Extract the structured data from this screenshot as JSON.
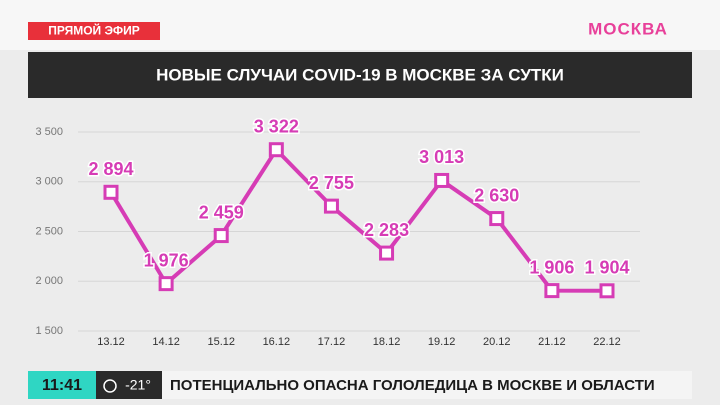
{
  "live_badge": "ПРЯМОЙ ЭФИР",
  "logo": "МОСКВА",
  "chart_data": {
    "type": "line",
    "title": "НОВЫЕ СЛУЧАИ COVID-19 В МОСКВЕ ЗА СУТКИ",
    "categories": [
      "13.12",
      "14.12",
      "15.12",
      "16.12",
      "17.12",
      "18.12",
      "19.12",
      "20.12",
      "21.12",
      "22.12"
    ],
    "values": [
      2894,
      1976,
      2459,
      3322,
      2755,
      2283,
      3013,
      2630,
      1906,
      1904
    ],
    "value_labels": [
      "2 894",
      "1 976",
      "2 459",
      "3 322",
      "2 755",
      "2 283",
      "3 013",
      "2 630",
      "1 906",
      "1 904"
    ],
    "color": "#d63cb5",
    "ylim": [
      1500,
      3500
    ],
    "yticks": [
      {
        "value": 1500,
        "label": "1 500"
      },
      {
        "value": 2000,
        "label": "2 000"
      },
      {
        "value": 2500,
        "label": "2 500"
      },
      {
        "value": 3000,
        "label": "3 000"
      },
      {
        "value": 3500,
        "label": "3 500"
      }
    ],
    "grid": true
  },
  "ticker": {
    "clock": "11:41",
    "temperature": "-21°",
    "text": "ПОТЕНЦИАЛЬНО ОПАСНА ГОЛОЛЕДИЦА В МОСКВЕ И ОБЛАСТИ"
  }
}
